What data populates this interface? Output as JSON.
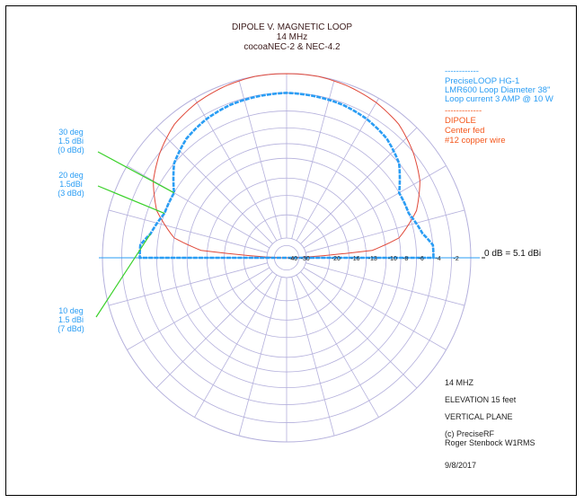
{
  "title": {
    "line1": "DIPOLE  V. MAGNETIC LOOP",
    "line2": "14 MHz",
    "line3": "cocoaNEC-2 & NEC-4.2"
  },
  "legend": {
    "loop": {
      "dashes": "------------",
      "line1": "PreciseLOOP HG-1",
      "line2": "LMR600 Loop Diameter 38\"",
      "line3": "Loop current 3 AMP @ 10 W",
      "color": "#2a9df4"
    },
    "dipole": {
      "dashes": "-------------",
      "line1": "DIPOLE",
      "line2": "Center fed",
      "line3": "#12 copper wire",
      "color": "#f4561b"
    }
  },
  "annotations": [
    {
      "line1": "30 deg",
      "line2": "1.5 dBi",
      "line3": "(0 dBd)"
    },
    {
      "line1": "20 deg",
      "line2": "1.5dBi",
      "line3": "(3 dBd)"
    },
    {
      "line1": "10 deg",
      "line2": "1.5 dBi",
      "line3": "(7 dBd)"
    }
  ],
  "zero_ref": "0 dB = 5.1 dBi",
  "info": {
    "freq": "14 MHZ",
    "elevation": "ELEVATION 15 feet",
    "plane": "VERTICAL PLANE",
    "credit1": "(c) PreciseRF",
    "credit2": "Roger Stenbock W1RMS",
    "date": "9/8/2017"
  },
  "colors": {
    "grid": "#b4b0dc",
    "loop": "#2a9df4",
    "dipole": "#e0493a",
    "annotation": "#3ad12a",
    "axis": "#2a9df4"
  },
  "chart_data": {
    "type": "polar",
    "plane": "vertical",
    "radial_ticks_db": [
      -40,
      -30,
      -20,
      -16,
      -13,
      -10,
      -8,
      -6,
      -4,
      -2
    ],
    "angle_grid_deg": 15,
    "series": [
      {
        "name": "PreciseLOOP HG-1",
        "color": "#2a9df4",
        "style": "dashed",
        "points": [
          [
            0,
            -4
          ],
          [
            5,
            -4
          ],
          [
            10,
            -5
          ],
          [
            20,
            -6
          ],
          [
            30,
            -6
          ],
          [
            40,
            -4
          ],
          [
            50,
            -3
          ],
          [
            60,
            -2.5
          ],
          [
            70,
            -2.2
          ],
          [
            80,
            -2.1
          ],
          [
            90,
            -2
          ],
          [
            100,
            -2.1
          ],
          [
            110,
            -2.2
          ],
          [
            120,
            -2.5
          ],
          [
            130,
            -3
          ],
          [
            140,
            -4
          ],
          [
            150,
            -6
          ],
          [
            160,
            -6
          ],
          [
            170,
            -5
          ],
          [
            175,
            -4
          ],
          [
            180,
            -4
          ]
        ]
      },
      {
        "name": "DIPOLE",
        "color": "#e0493a",
        "style": "solid",
        "points": [
          [
            0,
            -40
          ],
          [
            5,
            -12
          ],
          [
            10,
            -8
          ],
          [
            20,
            -5
          ],
          [
            30,
            -3.2
          ],
          [
            40,
            -2
          ],
          [
            50,
            -1
          ],
          [
            60,
            -0.5
          ],
          [
            70,
            -0.2
          ],
          [
            80,
            0
          ],
          [
            90,
            0
          ],
          [
            100,
            0
          ],
          [
            110,
            -0.2
          ],
          [
            120,
            -0.5
          ],
          [
            130,
            -1
          ],
          [
            140,
            -2
          ],
          [
            150,
            -3.2
          ],
          [
            160,
            -5
          ],
          [
            170,
            -8
          ],
          [
            175,
            -12
          ],
          [
            180,
            -40
          ]
        ]
      }
    ]
  }
}
